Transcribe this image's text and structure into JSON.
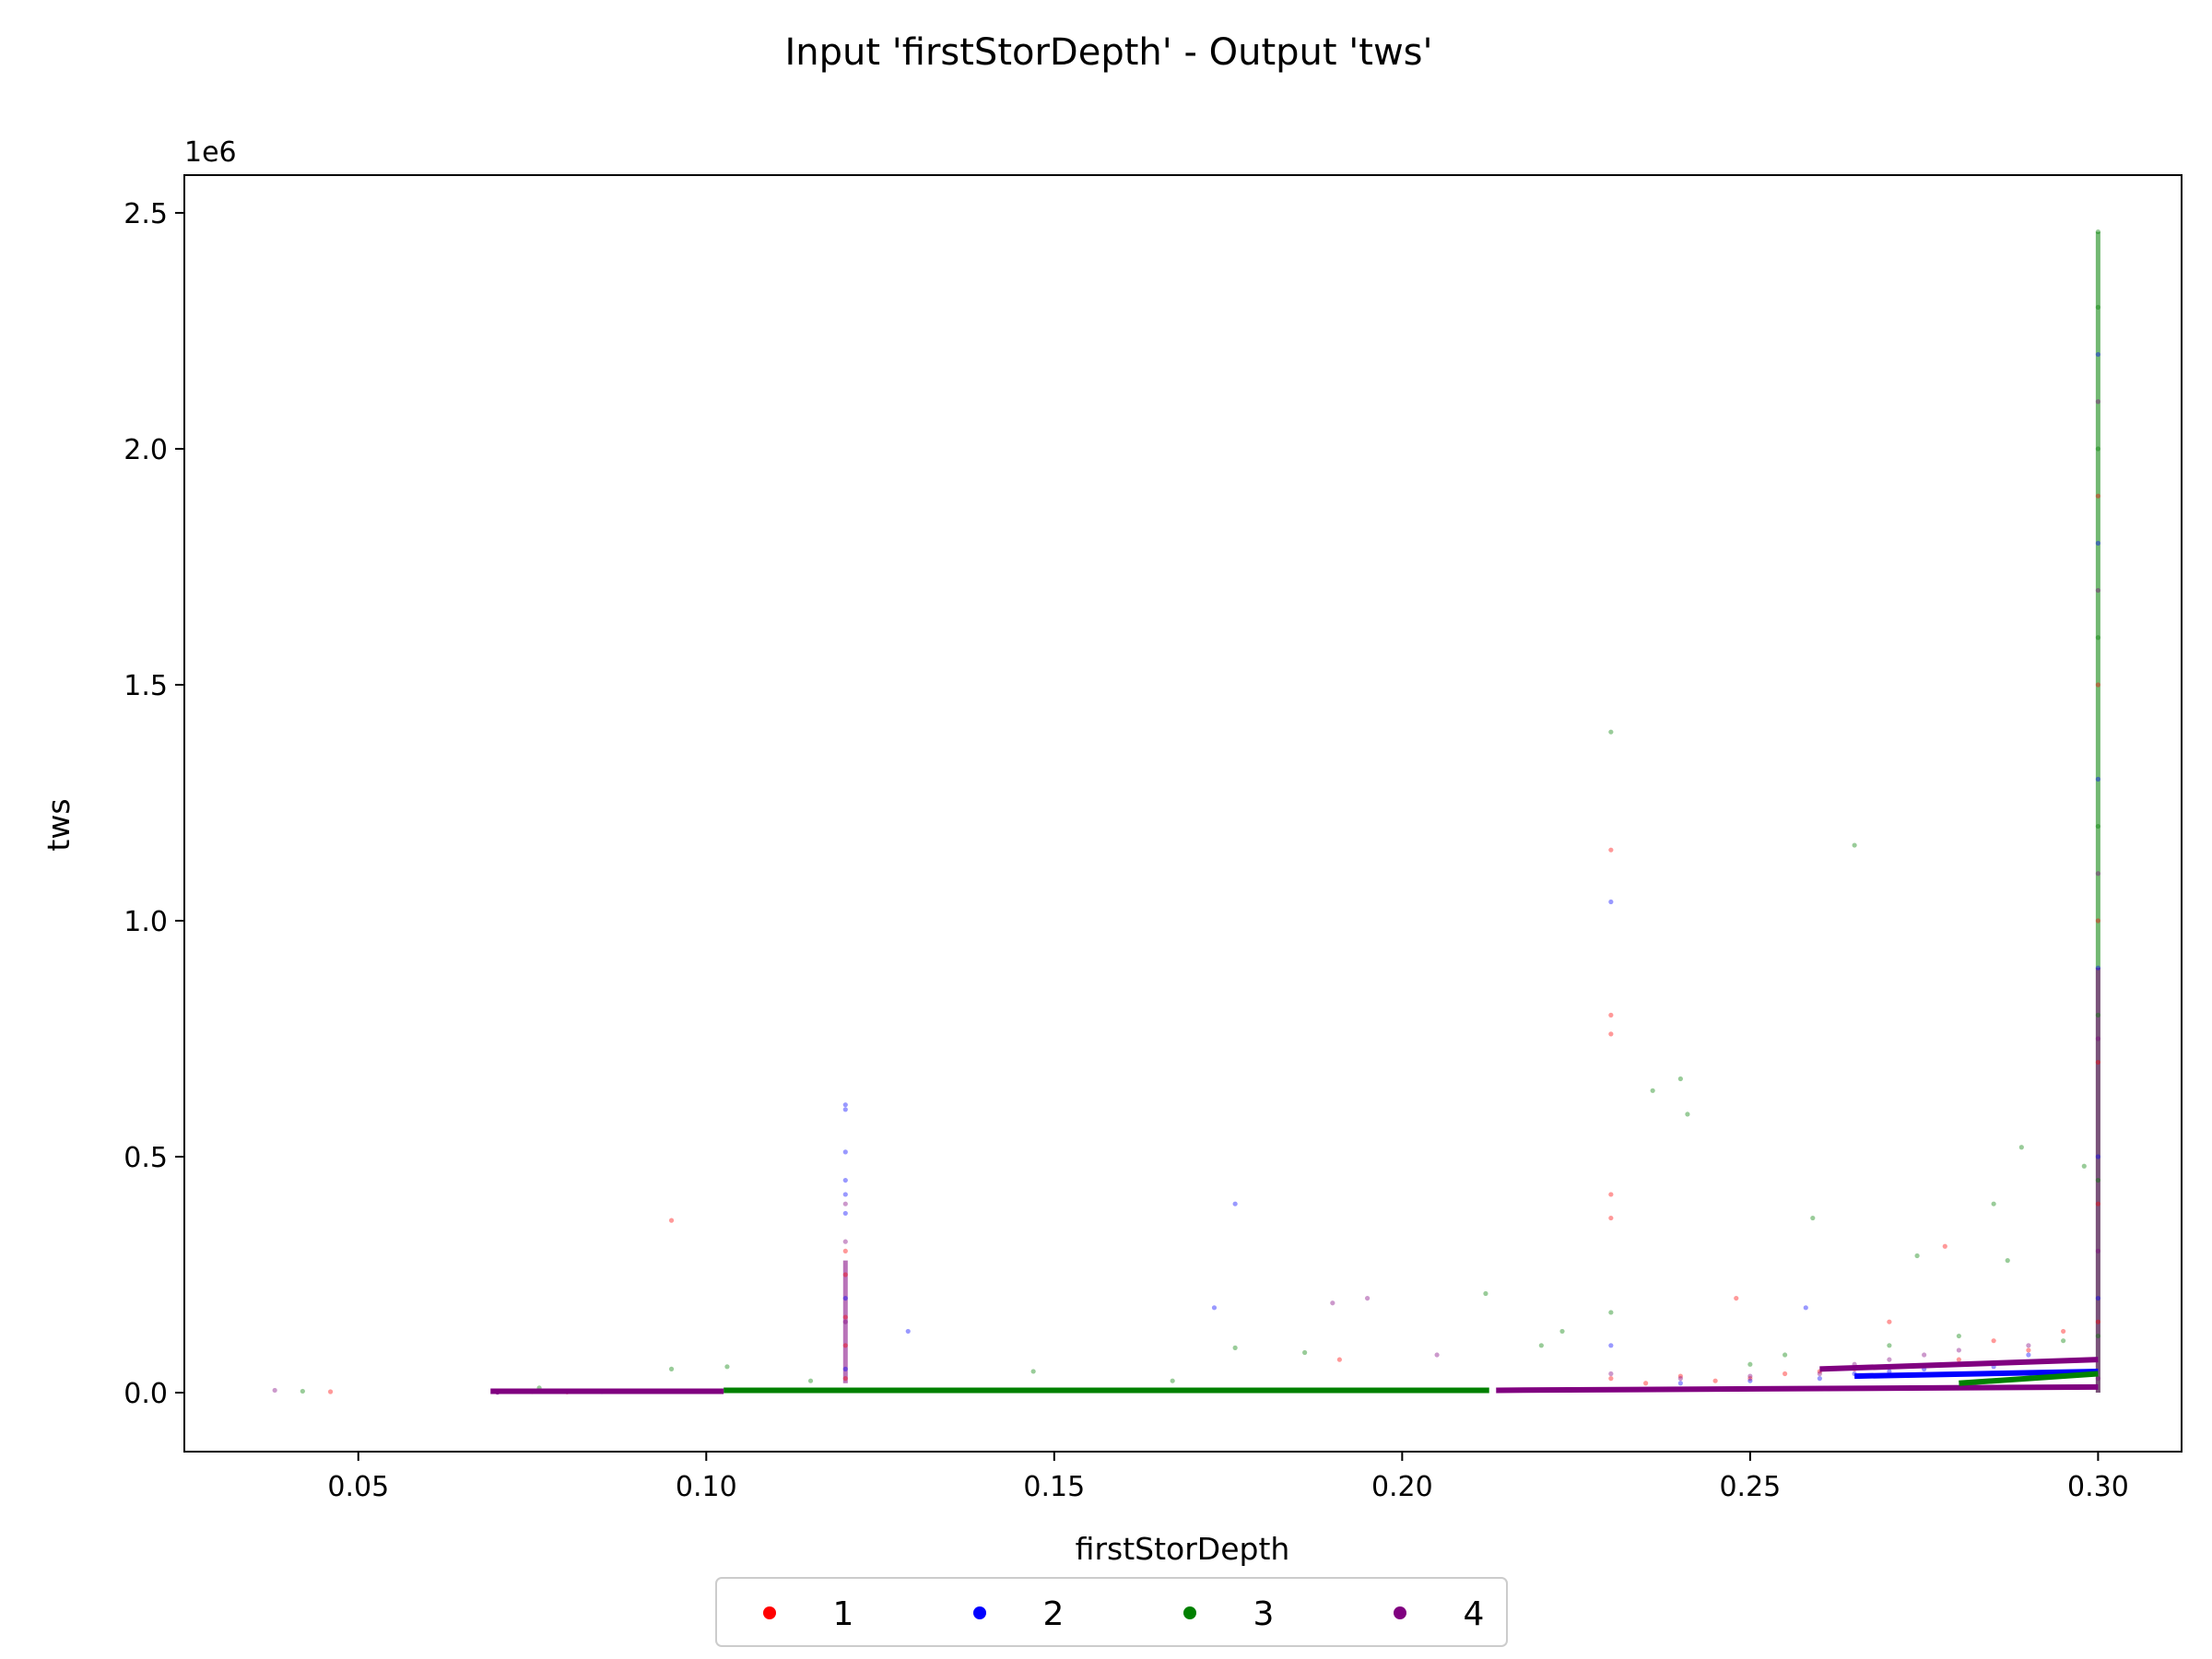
{
  "chart_data": {
    "type": "scatter",
    "title": "Input 'firstStorDepth' - Output 'tws'",
    "xlabel": "firstStorDepth",
    "ylabel": "tws",
    "y_offset_label": "1e6",
    "xlim": [
      0.025,
      0.312
    ],
    "ylim": [
      -125000,
      2580000
    ],
    "x_ticks": [
      0.05,
      0.1,
      0.15,
      0.2,
      0.25,
      0.3
    ],
    "x_tick_labels": [
      "0.05",
      "0.10",
      "0.15",
      "0.20",
      "0.25",
      "0.30"
    ],
    "y_ticks": [
      0,
      500000,
      1000000,
      1500000,
      2000000,
      2500000
    ],
    "y_tick_labels": [
      "0.0",
      "0.5",
      "1.0",
      "1.5",
      "2.0",
      "2.5"
    ],
    "grid": false,
    "legend_position": "bottom-center",
    "series": [
      {
        "name": "1",
        "color": "#ff0000",
        "points": [
          [
            0.046,
            2000
          ],
          [
            0.095,
            365000
          ],
          [
            0.07,
            1000
          ],
          [
            0.075,
            2000
          ],
          [
            0.08,
            1500
          ],
          [
            0.09,
            3000
          ],
          [
            0.12,
            100000
          ],
          [
            0.12,
            160000
          ],
          [
            0.12,
            250000
          ],
          [
            0.12,
            300000
          ],
          [
            0.12,
            30000
          ],
          [
            0.191,
            70000
          ],
          [
            0.23,
            1150000
          ],
          [
            0.23,
            800000
          ],
          [
            0.23,
            760000
          ],
          [
            0.23,
            420000
          ],
          [
            0.23,
            370000
          ],
          [
            0.23,
            30000
          ],
          [
            0.235,
            20000
          ],
          [
            0.24,
            35000
          ],
          [
            0.245,
            25000
          ],
          [
            0.248,
            200000
          ],
          [
            0.25,
            30000
          ],
          [
            0.255,
            40000
          ],
          [
            0.26,
            45000
          ],
          [
            0.265,
            50000
          ],
          [
            0.27,
            150000
          ],
          [
            0.278,
            310000
          ],
          [
            0.28,
            70000
          ],
          [
            0.285,
            110000
          ],
          [
            0.29,
            90000
          ],
          [
            0.295,
            130000
          ],
          [
            0.3,
            1900000
          ],
          [
            0.3,
            1500000
          ],
          [
            0.3,
            1000000
          ],
          [
            0.3,
            700000
          ],
          [
            0.3,
            400000
          ],
          [
            0.3,
            150000
          ]
        ]
      },
      {
        "name": "2",
        "color": "#0000ff",
        "points": [
          [
            0.07,
            1000
          ],
          [
            0.085,
            2000
          ],
          [
            0.1,
            3000
          ],
          [
            0.12,
            610000
          ],
          [
            0.12,
            600000
          ],
          [
            0.12,
            510000
          ],
          [
            0.12,
            450000
          ],
          [
            0.12,
            420000
          ],
          [
            0.12,
            380000
          ],
          [
            0.12,
            200000
          ],
          [
            0.12,
            50000
          ],
          [
            0.129,
            130000
          ],
          [
            0.173,
            180000
          ],
          [
            0.176,
            400000
          ],
          [
            0.23,
            1040000
          ],
          [
            0.23,
            100000
          ],
          [
            0.24,
            20000
          ],
          [
            0.25,
            25000
          ],
          [
            0.258,
            180000
          ],
          [
            0.26,
            30000
          ],
          [
            0.265,
            40000
          ],
          [
            0.27,
            45000
          ],
          [
            0.275,
            50000
          ],
          [
            0.28,
            60000
          ],
          [
            0.285,
            55000
          ],
          [
            0.29,
            80000
          ],
          [
            0.3,
            2200000
          ],
          [
            0.3,
            1800000
          ],
          [
            0.3,
            1300000
          ],
          [
            0.3,
            900000
          ],
          [
            0.3,
            500000
          ],
          [
            0.3,
            200000
          ]
        ]
      },
      {
        "name": "3",
        "color": "#008000",
        "points": [
          [
            0.042,
            3000
          ],
          [
            0.076,
            10000
          ],
          [
            0.095,
            50000
          ],
          [
            0.103,
            55000
          ],
          [
            0.11,
            5000
          ],
          [
            0.115,
            25000
          ],
          [
            0.147,
            45000
          ],
          [
            0.167,
            25000
          ],
          [
            0.176,
            95000
          ],
          [
            0.186,
            85000
          ],
          [
            0.2,
            5000
          ],
          [
            0.212,
            210000
          ],
          [
            0.22,
            100000
          ],
          [
            0.223,
            130000
          ],
          [
            0.23,
            1400000
          ],
          [
            0.23,
            170000
          ],
          [
            0.236,
            640000
          ],
          [
            0.24,
            665000
          ],
          [
            0.241,
            590000
          ],
          [
            0.25,
            60000
          ],
          [
            0.255,
            80000
          ],
          [
            0.259,
            370000
          ],
          [
            0.265,
            1160000
          ],
          [
            0.27,
            100000
          ],
          [
            0.274,
            290000
          ],
          [
            0.28,
            120000
          ],
          [
            0.285,
            400000
          ],
          [
            0.287,
            280000
          ],
          [
            0.289,
            520000
          ],
          [
            0.295,
            110000
          ],
          [
            0.298,
            480000
          ],
          [
            0.3,
            2460000
          ],
          [
            0.3,
            2300000
          ],
          [
            0.3,
            2000000
          ],
          [
            0.3,
            1600000
          ],
          [
            0.3,
            1200000
          ],
          [
            0.3,
            800000
          ],
          [
            0.3,
            450000
          ],
          [
            0.3,
            120000
          ]
        ]
      },
      {
        "name": "4",
        "color": "#800080",
        "points": [
          [
            0.038,
            5000
          ],
          [
            0.07,
            1000
          ],
          [
            0.08,
            2000
          ],
          [
            0.09,
            2500
          ],
          [
            0.1,
            3000
          ],
          [
            0.12,
            400000
          ],
          [
            0.12,
            320000
          ],
          [
            0.12,
            150000
          ],
          [
            0.19,
            190000
          ],
          [
            0.195,
            200000
          ],
          [
            0.205,
            80000
          ],
          [
            0.23,
            40000
          ],
          [
            0.24,
            30000
          ],
          [
            0.25,
            35000
          ],
          [
            0.26,
            40000
          ],
          [
            0.265,
            60000
          ],
          [
            0.27,
            70000
          ],
          [
            0.275,
            80000
          ],
          [
            0.28,
            90000
          ],
          [
            0.29,
            100000
          ],
          [
            0.3,
            2100000
          ],
          [
            0.3,
            1700000
          ],
          [
            0.3,
            1100000
          ],
          [
            0.3,
            750000
          ],
          [
            0.3,
            300000
          ],
          [
            0.3,
            30000
          ]
        ]
      }
    ],
    "dense_bands": [
      {
        "series": "3",
        "x": [
          0.1025,
          0.2125
        ],
        "y": [
          5000,
          5000
        ]
      },
      {
        "series": "4",
        "x": [
          0.2135,
          0.3
        ],
        "y": [
          5000,
          12000
        ]
      },
      {
        "series": "4",
        "x": [
          0.069,
          0.1025
        ],
        "y": [
          3000,
          3000
        ]
      },
      {
        "series": "2",
        "x": [
          0.265,
          0.3
        ],
        "y": [
          35000,
          45000
        ]
      },
      {
        "series": "3",
        "x": [
          0.28,
          0.3
        ],
        "y": [
          20000,
          40000
        ]
      },
      {
        "series": "4",
        "x": [
          0.26,
          0.3
        ],
        "y": [
          50000,
          70000
        ]
      }
    ],
    "dense_columns": [
      {
        "series": "4",
        "x": 0.12,
        "y": [
          20000,
          280000
        ]
      },
      {
        "series": "3",
        "x": 0.3,
        "y": [
          0,
          2460000
        ]
      },
      {
        "series": "4",
        "x": 0.3,
        "y": [
          0,
          900000
        ]
      }
    ]
  }
}
